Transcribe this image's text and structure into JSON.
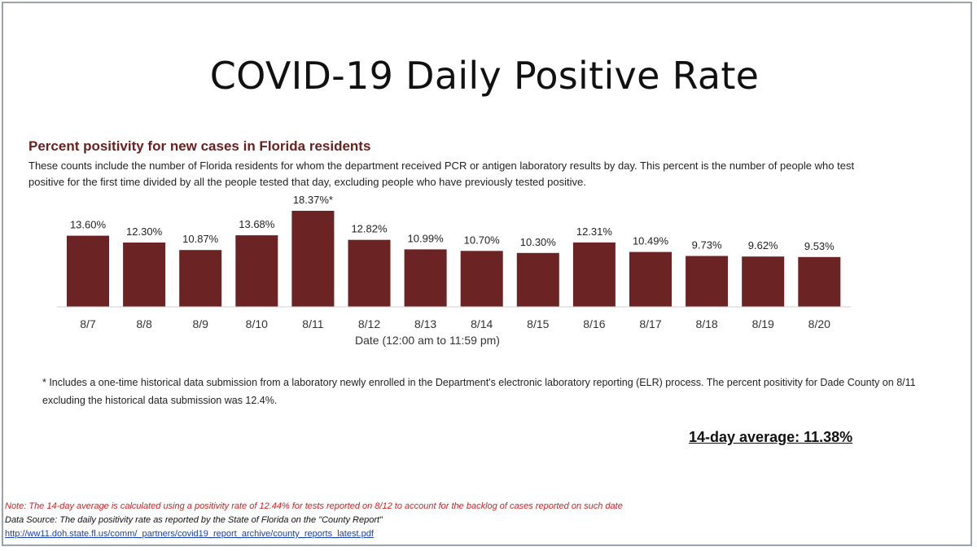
{
  "slide": {
    "title": "COVID-19 Daily Positive Rate",
    "average": "14-day average: 11.38%",
    "note": "Note: The 14-day average is calculated using a positivity rate of 12.44% for tests reported on 8/12 to account for the backlog of cases reported on such date",
    "source": "Data Source: The daily positivity rate as reported by the State of Florida on the \"County Report\"",
    "link": "http://ww11.doh.state.fl.us/comm/_partners/covid19_report_archive/county_reports_latest.pdf"
  },
  "chart_data": {
    "type": "bar",
    "title": "Percent positivity for new cases in Florida residents",
    "subtitle": "These counts include the number of Florida residents for whom the department received PCR or antigen laboratory results by day. This percent is the number of people who test positive for the first time divided by all the people tested that day, excluding people who have previously tested positive.",
    "xlabel": "Date (12:00 am to 11:59 pm)",
    "ylabel": "",
    "categories": [
      "8/7",
      "8/8",
      "8/9",
      "8/10",
      "8/11",
      "8/12",
      "8/13",
      "8/14",
      "8/15",
      "8/16",
      "8/17",
      "8/18",
      "8/19",
      "8/20"
    ],
    "values": [
      13.6,
      12.3,
      10.87,
      13.68,
      18.37,
      12.82,
      10.99,
      10.7,
      10.3,
      12.31,
      10.49,
      9.73,
      9.62,
      9.53
    ],
    "value_labels": [
      "13.60%",
      "12.30%",
      "10.87%",
      "13.68%",
      "18.37%*",
      "12.82%",
      "10.99%",
      "10.70%",
      "10.30%",
      "12.31%",
      "10.49%",
      "9.73%",
      "9.62%",
      "9.53%"
    ],
    "ylim": [
      0,
      18.37
    ],
    "grid": false,
    "bar_color": "#6b2323",
    "footnote": "* Includes a one-time historical data submission from a laboratory newly enrolled in the Department's electronic laboratory reporting (ELR) process. The percent positivity for Dade County on 8/11 excluding the historical data submission was 12.4%."
  }
}
